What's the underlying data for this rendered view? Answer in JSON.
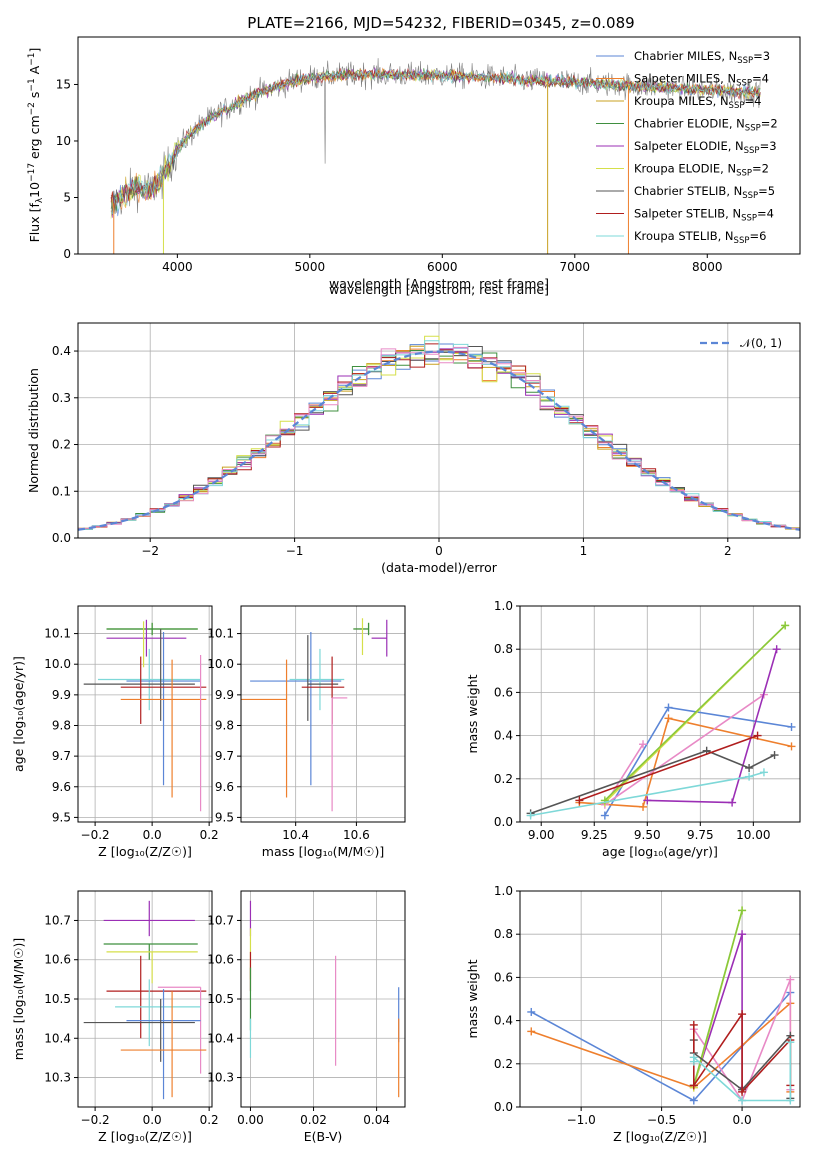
{
  "title": "PLATE=2166, MJD=54232, FIBERID=0345, z=0.089",
  "colors": {
    "Chabrier MILES": "#5b86d6",
    "Salpeter MILES": "#ee7f2d",
    "Kroupa MILES": "#c8a020",
    "Chabrier ELODIE": "#3f8f3f",
    "Salpeter ELODIE": "#9b2fb5",
    "Kroupa ELODIE": "#d5df4a",
    "Chabrier STELIB": "#555555",
    "Salpeter STELIB": "#b01e1e",
    "Kroupa STELIB": "#7ed8d8",
    "extra_pink": "#e88ac6",
    "extra_green": "#88c83c",
    "gray_spec": "#808080"
  },
  "chart_data": [
    {
      "id": "spectrum",
      "type": "line",
      "title": "PLATE=2166, MJD=54232, FIBERID=0345, z=0.089",
      "xlabel": "wavelength [Angstrom, rest frame]",
      "ylabel_main": "Flux [f",
      "ylabel_sub1": "λ",
      "ylabel_mid": "10",
      "ylabel_sup1": "−17",
      "ylabel_rest": " erg cm",
      "ylabel_sup2": "−2",
      "ylabel_s": " s",
      "ylabel_sup3": "−1",
      "ylabel_A": " A",
      "ylabel_sup4": "−1",
      "ylabel_end": "]",
      "xlim": [
        3250,
        8700
      ],
      "ylim": [
        0,
        19.2
      ],
      "xticks": [
        "4000",
        "5000",
        "6000",
        "7000",
        "8000"
      ],
      "yticks": [
        "0",
        "5",
        "10",
        "15"
      ],
      "legend_placement": "right",
      "continuum": {
        "x": [
          3500,
          3600,
          3700,
          3800,
          3900,
          4000,
          4100,
          4200,
          4300,
          4400,
          4500,
          4600,
          4700,
          4800,
          4900,
          5000,
          5200,
          5400,
          5600,
          5800,
          6000,
          6200,
          6400,
          6600,
          6800,
          7000,
          7200,
          7400,
          7600,
          7800,
          8000,
          8200,
          8400
        ],
        "y": [
          4.3,
          5.2,
          6.0,
          5.6,
          7.0,
          9.3,
          10.6,
          11.6,
          12.4,
          13.0,
          13.7,
          14.2,
          14.6,
          15.0,
          15.4,
          15.6,
          15.8,
          15.9,
          15.9,
          15.8,
          15.8,
          15.7,
          15.6,
          15.4,
          15.3,
          15.2,
          15.1,
          14.9,
          14.8,
          14.6,
          14.5,
          14.4,
          14.3
        ]
      },
      "series": [
        {
          "name": "Chabrier MILES",
          "nssp": "3"
        },
        {
          "name": "Salpeter MILES",
          "nssp": "4"
        },
        {
          "name": "Kroupa MILES",
          "nssp": "4"
        },
        {
          "name": "Chabrier ELODIE",
          "nssp": "2"
        },
        {
          "name": "Salpeter ELODIE",
          "nssp": "3"
        },
        {
          "name": "Kroupa ELODIE",
          "nssp": "2"
        },
        {
          "name": "Chabrier STELIB",
          "nssp": "5"
        },
        {
          "name": "Salpeter STELIB",
          "nssp": "4"
        },
        {
          "name": "Kroupa STELIB",
          "nssp": "6"
        }
      ],
      "legend_suffix": ", N",
      "legend_sub": "SSP"
    },
    {
      "id": "residuals",
      "type": "line",
      "xlabel": "(data-model)/error",
      "ylabel": "Normed distribution",
      "xlim": [
        -2.5,
        2.5
      ],
      "ylim": [
        0,
        0.46
      ],
      "xticks": [
        "−2",
        "−1",
        "0",
        "1",
        "2"
      ],
      "yticks": [
        "0.0",
        "0.1",
        "0.2",
        "0.3",
        "0.4"
      ],
      "grid": true,
      "legend_label": "𝒩(0, 1)",
      "bin_width": 0.1
    },
    {
      "id": "age_vs_Z",
      "type": "scatter",
      "xlabel": "Z [log₁₀(Z/Z☉)]",
      "ylabel": "age  [log₁₀(age/yr)]",
      "xlim": [
        -0.26,
        0.21
      ],
      "ylim": [
        9.485,
        10.19
      ],
      "xticks": [
        "−0.2",
        "0.0",
        "0.2"
      ],
      "yticks": [
        "9.5",
        "9.6",
        "9.7",
        "9.8",
        "9.9",
        "10.0",
        "10.1"
      ],
      "grid": true,
      "points": [
        {
          "c": "extra_green",
          "x": 0.0,
          "xerr": [
            0.16,
            0.16
          ],
          "y": 10.115,
          "yerr": [
            0.02,
            0.02
          ]
        },
        {
          "c": "Chabrier ELODIE",
          "x": 0.0,
          "xerr": [
            0.16,
            0.16
          ],
          "y": 10.115,
          "yerr": [
            0.02,
            0.02
          ]
        },
        {
          "c": "Salpeter ELODIE",
          "x": -0.02,
          "xerr": [
            0.14,
            0.14
          ],
          "y": 10.085,
          "yerr": [
            0.06,
            0.06
          ]
        },
        {
          "c": "Kroupa STELIB",
          "x": -0.01,
          "xerr": [
            0.18,
            0.18
          ],
          "y": 9.95,
          "yerr": [
            0.1,
            0.1
          ]
        },
        {
          "c": "Chabrier MILES",
          "x": 0.04,
          "xerr": [
            0.13,
            0.13
          ],
          "y": 9.945,
          "yerr": [
            0.34,
            0.16
          ]
        },
        {
          "c": "Chabrier STELIB",
          "x": 0.03,
          "xerr": [
            0.27,
            0.12
          ],
          "y": 9.935,
          "yerr": [
            0.12,
            0.18
          ]
        },
        {
          "c": "Salpeter STELIB",
          "x": -0.04,
          "xerr": [
            0.07,
            0.23
          ],
          "y": 9.925,
          "yerr": [
            0.12,
            0.1
          ]
        },
        {
          "c": "Salpeter MILES",
          "x": 0.07,
          "xerr": [
            0.18,
            0.12
          ],
          "y": 9.885,
          "yerr": [
            0.32,
            0.13
          ]
        },
        {
          "c": "extra_pink",
          "x": 0.17,
          "xerr": [
            0.0,
            0.0
          ],
          "y": 9.86,
          "yerr": [
            0.34,
            0.17
          ]
        },
        {
          "c": "Kroupa ELODIE",
          "x": -0.03,
          "xerr": [
            0.0,
            0.0
          ],
          "y": 10.06,
          "yerr": [
            0.07,
            0.08
          ]
        }
      ]
    },
    {
      "id": "age_vs_mass",
      "type": "scatter",
      "xlabel": "mass [log₁₀(M/M☉)]",
      "xlim": [
        10.22,
        10.76
      ],
      "ylim": [
        9.485,
        10.19
      ],
      "xticks": [
        "10.4",
        "10.6"
      ],
      "yticks": [
        "9.5",
        "9.6",
        "9.7",
        "9.8",
        "9.9",
        "10.0",
        "10.1"
      ],
      "grid": true,
      "points": [
        {
          "c": "extra_green",
          "x": 10.64,
          "xerr": [
            0.05,
            0.0
          ],
          "y": 10.115,
          "yerr": [
            0.02,
            0.02
          ]
        },
        {
          "c": "Chabrier ELODIE",
          "x": 10.64,
          "xerr": [
            0.05,
            0.0
          ],
          "y": 10.115,
          "yerr": [
            0.02,
            0.02
          ]
        },
        {
          "c": "Salpeter ELODIE",
          "x": 10.7,
          "xerr": [
            0.05,
            0.0
          ],
          "y": 10.085,
          "yerr": [
            0.06,
            0.06
          ]
        },
        {
          "c": "Kroupa ELODIE",
          "x": 10.62,
          "xerr": [
            0.0,
            0.0
          ],
          "y": 10.09,
          "yerr": [
            0.06,
            0.06
          ]
        },
        {
          "c": "Chabrier MILES",
          "x": 10.45,
          "xerr": [
            0.2,
            0.1
          ],
          "y": 9.945,
          "yerr": [
            0.34,
            0.16
          ]
        },
        {
          "c": "Kroupa STELIB",
          "x": 10.48,
          "xerr": [
            0.1,
            0.08
          ],
          "y": 9.95,
          "yerr": [
            0.1,
            0.1
          ]
        },
        {
          "c": "Chabrier STELIB",
          "x": 10.44,
          "xerr": [
            0.0,
            0.1
          ],
          "y": 9.935,
          "yerr": [
            0.12,
            0.16
          ]
        },
        {
          "c": "Salpeter STELIB",
          "x": 10.52,
          "xerr": [
            0.1,
            0.04
          ],
          "y": 9.925,
          "yerr": [
            0.12,
            0.1
          ]
        },
        {
          "c": "Salpeter MILES",
          "x": 10.37,
          "xerr": [
            0.15,
            0.0
          ],
          "y": 9.885,
          "yerr": [
            0.32,
            0.13
          ]
        },
        {
          "c": "extra_pink",
          "x": 10.52,
          "xerr": [
            0.0,
            0.05
          ],
          "y": 9.89,
          "yerr": [
            0.37,
            0.0
          ]
        }
      ]
    },
    {
      "id": "mw_vs_age",
      "type": "line",
      "xlabel": "age  [log₁₀(age/yr)]",
      "ylabel": "mass weight",
      "xlim": [
        8.9,
        10.22
      ],
      "ylim": [
        0,
        1.0
      ],
      "xticks": [
        "9.00",
        "9.25",
        "9.50",
        "9.75",
        "10.00"
      ],
      "yticks": [
        "0.0",
        "0.2",
        "0.4",
        "0.6",
        "0.8",
        "1.0"
      ],
      "grid": true,
      "series": [
        {
          "c": "Chabrier MILES",
          "x": [
            9.3,
            9.6,
            10.18
          ],
          "y": [
            0.03,
            0.53,
            0.44
          ]
        },
        {
          "c": "Salpeter MILES",
          "x": [
            9.18,
            9.48,
            9.6,
            10.18
          ],
          "y": [
            0.09,
            0.07,
            0.48,
            0.35
          ]
        },
        {
          "c": "extra_pink",
          "x": [
            9.48,
            9.3,
            10.05
          ],
          "y": [
            0.36,
            0.08,
            0.59
          ]
        },
        {
          "c": "Salpeter ELODIE",
          "x": [
            9.5,
            9.9,
            10.11
          ],
          "y": [
            0.1,
            0.09,
            0.8
          ]
        },
        {
          "c": "Kroupa ELODIE",
          "x": [
            9.3,
            10.15
          ],
          "y": [
            0.09,
            0.91
          ]
        },
        {
          "c": "extra_green",
          "x": [
            9.3,
            10.15
          ],
          "y": [
            0.1,
            0.91
          ]
        },
        {
          "c": "Chabrier STELIB",
          "x": [
            8.95,
            9.78,
            9.98,
            10.1
          ],
          "y": [
            0.04,
            0.33,
            0.25,
            0.31
          ]
        },
        {
          "c": "Salpeter STELIB",
          "x": [
            9.18,
            10.02
          ],
          "y": [
            0.1,
            0.4
          ]
        },
        {
          "c": "Kroupa STELIB",
          "x": [
            8.95,
            9.98,
            10.05
          ],
          "y": [
            0.03,
            0.21,
            0.23
          ]
        }
      ]
    },
    {
      "id": "mass_vs_Z",
      "type": "scatter",
      "xlabel": "Z [log₁₀(Z/Z☉)]",
      "ylabel": "mass [log₁₀(M/M☉)]",
      "xlim": [
        -0.26,
        0.21
      ],
      "ylim": [
        10.225,
        10.775
      ],
      "xticks": [
        "−0.2",
        "0.0",
        "0.2"
      ],
      "yticks": [
        "10.3",
        "10.4",
        "10.5",
        "10.6",
        "10.7"
      ],
      "grid": true,
      "points": [
        {
          "c": "Salpeter ELODIE",
          "x": -0.01,
          "xerr": [
            0.16,
            0.16
          ],
          "y": 10.7,
          "yerr": [
            0.04,
            0.05
          ]
        },
        {
          "c": "Chabrier ELODIE",
          "x": -0.01,
          "xerr": [
            0.16,
            0.17
          ],
          "y": 10.64,
          "yerr": [
            0.04,
            0.0
          ]
        },
        {
          "c": "Kroupa ELODIE",
          "x": 0.0,
          "xerr": [
            0.16,
            0.16
          ],
          "y": 10.62,
          "yerr": [
            0.08,
            0.0
          ]
        },
        {
          "c": "Salpeter STELIB",
          "x": -0.04,
          "xerr": [
            0.12,
            0.23
          ],
          "y": 10.52,
          "yerr": [
            0.12,
            0.09
          ]
        },
        {
          "c": "extra_pink",
          "x": 0.17,
          "xerr": [
            0.15,
            0.0
          ],
          "y": 10.53,
          "yerr": [
            0.22,
            0.0
          ]
        },
        {
          "c": "Kroupa STELIB",
          "x": -0.01,
          "xerr": [
            0.12,
            0.18
          ],
          "y": 10.48,
          "yerr": [
            0.1,
            0.07
          ]
        },
        {
          "c": "Chabrier MILES",
          "x": 0.04,
          "xerr": [
            0.13,
            0.13
          ],
          "y": 10.445,
          "yerr": [
            0.2,
            0.08
          ]
        },
        {
          "c": "Chabrier STELIB",
          "x": 0.03,
          "xerr": [
            0.27,
            0.12
          ],
          "y": 10.44,
          "yerr": [
            0.1,
            0.06
          ]
        },
        {
          "c": "Salpeter MILES",
          "x": 0.07,
          "xerr": [
            0.18,
            0.12
          ],
          "y": 10.37,
          "yerr": [
            0.12,
            0.15
          ]
        }
      ]
    },
    {
      "id": "mass_vs_ebv",
      "type": "scatter",
      "xlabel": "E(B-V)",
      "xlim": [
        -0.003,
        0.049
      ],
      "ylim": [
        10.225,
        10.775
      ],
      "xticks": [
        "0.00",
        "0.02",
        "0.04"
      ],
      "yticks": [
        "10.3",
        "10.4",
        "10.5",
        "10.6",
        "10.7"
      ],
      "grid": true,
      "points": [
        {
          "c": "Salpeter ELODIE",
          "x": 0.0,
          "xerr": [
            0.0,
            0.0
          ],
          "y": 10.7,
          "yerr": [
            0.04,
            0.05
          ]
        },
        {
          "c": "Kroupa ELODIE",
          "x": 0.0,
          "xerr": [
            0.0,
            0.0
          ],
          "y": 10.62,
          "yerr": [
            0.07,
            0.06
          ]
        },
        {
          "c": "Salpeter STELIB",
          "x": 0.0,
          "xerr": [
            0.0,
            0.0
          ],
          "y": 10.58,
          "yerr": [
            0.06,
            0.04
          ]
        },
        {
          "c": "Chabrier ELODIE",
          "x": 0.0,
          "xerr": [
            0.0,
            0.0
          ],
          "y": 10.5,
          "yerr": [
            0.08,
            0.08
          ]
        },
        {
          "c": "Kroupa STELIB",
          "x": 0.0,
          "xerr": [
            0.0,
            0.0
          ],
          "y": 10.4,
          "yerr": [
            0.05,
            0.05
          ]
        },
        {
          "c": "extra_pink",
          "x": 0.027,
          "xerr": [
            0.0,
            0.0
          ],
          "y": 10.47,
          "yerr": [
            0.14,
            0.14
          ]
        },
        {
          "c": "Chabrier MILES",
          "x": 0.047,
          "xerr": [
            0.0,
            0.0
          ],
          "y": 10.45,
          "yerr": [
            0.06,
            0.08
          ]
        },
        {
          "c": "Salpeter MILES",
          "x": 0.047,
          "xerr": [
            0.0,
            0.0
          ],
          "y": 10.36,
          "yerr": [
            0.11,
            0.09
          ]
        }
      ]
    },
    {
      "id": "mw_vs_Z",
      "type": "line",
      "xlabel": "Z [log₁₀(Z/Z☉)]",
      "ylabel": "mass weight",
      "xlim": [
        -1.38,
        0.36
      ],
      "ylim": [
        0,
        1.0
      ],
      "xticks": [
        "−1.0",
        "−0.5",
        "0.0"
      ],
      "yticks": [
        "0.0",
        "0.2",
        "0.4",
        "0.6",
        "0.8",
        "1.0"
      ],
      "grid": true,
      "series": [
        {
          "c": "Chabrier MILES",
          "x": [
            -1.31,
            -0.3,
            0.3
          ],
          "y": [
            0.44,
            0.03,
            0.53
          ]
        },
        {
          "c": "Salpeter MILES",
          "x": [
            -1.31,
            -0.3,
            0.3,
            0.3
          ],
          "y": [
            0.35,
            0.09,
            0.48,
            0.07
          ]
        },
        {
          "c": "extra_pink",
          "x": [
            -0.3,
            0.0,
            0.3,
            0.3
          ],
          "y": [
            0.36,
            0.03,
            0.59,
            0.08
          ]
        },
        {
          "c": "Salpeter ELODIE",
          "x": [
            -0.3,
            0.0,
            0.0
          ],
          "y": [
            0.1,
            0.8,
            0.09
          ]
        },
        {
          "c": "Kroupa ELODIE",
          "x": [
            -0.3,
            0.0
          ],
          "y": [
            0.09,
            0.91
          ]
        },
        {
          "c": "extra_green",
          "x": [
            -0.3,
            0.0
          ],
          "y": [
            0.1,
            0.91
          ]
        },
        {
          "c": "Chabrier STELIB",
          "x": [
            -0.3,
            -0.3,
            0.0,
            0.3,
            0.3
          ],
          "y": [
            0.31,
            0.25,
            0.08,
            0.33,
            0.04
          ]
        },
        {
          "c": "Salpeter STELIB",
          "x": [
            -0.3,
            -0.3,
            0.0,
            0.0,
            0.3,
            0.3
          ],
          "y": [
            0.38,
            0.1,
            0.43,
            0.07,
            0.31,
            0.1
          ]
        },
        {
          "c": "Kroupa STELIB",
          "x": [
            -0.3,
            -0.3,
            0.0,
            0.3,
            0.3
          ],
          "y": [
            0.21,
            0.23,
            0.03,
            0.03,
            0.3
          ]
        }
      ]
    }
  ]
}
